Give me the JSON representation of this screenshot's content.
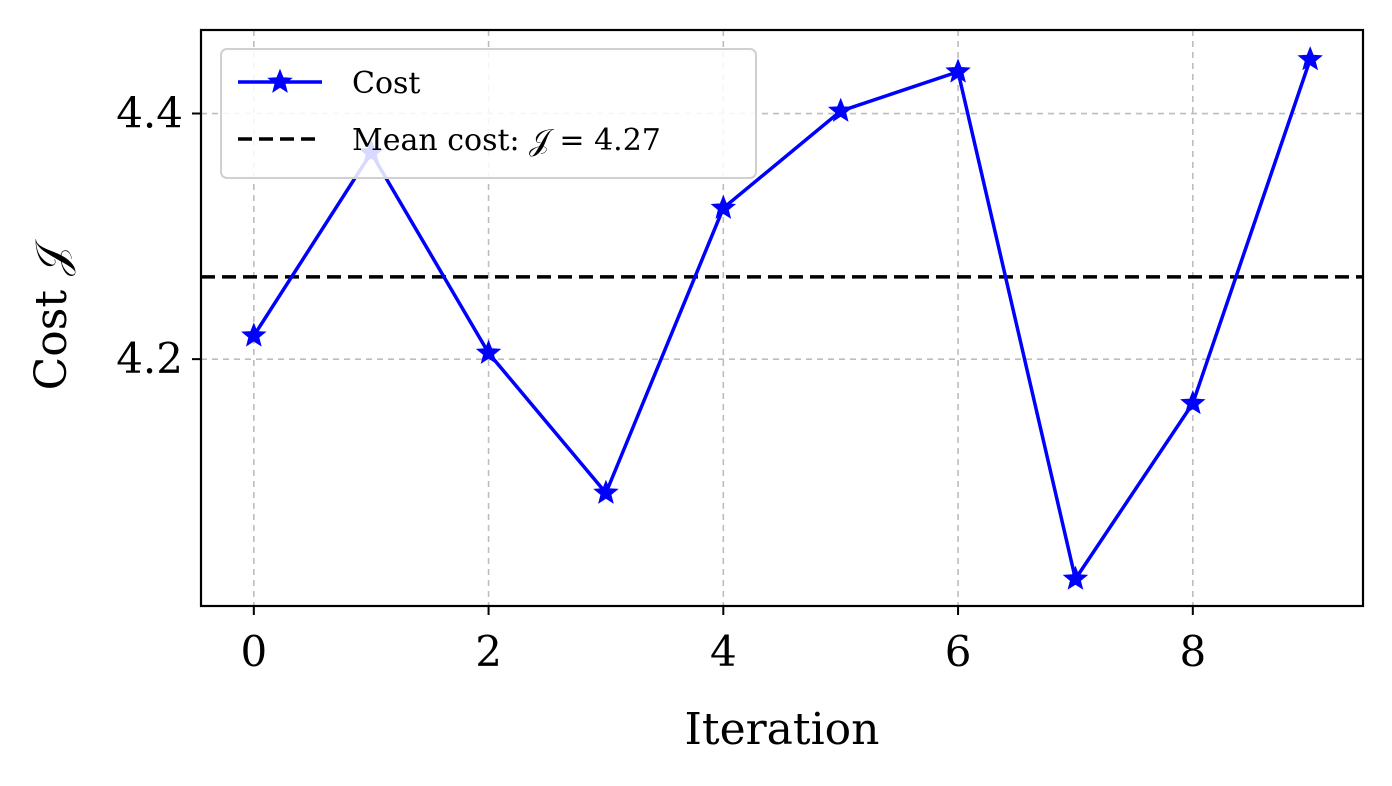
{
  "chart_data": {
    "type": "line",
    "xlabel": "Iteration",
    "ylabel": "Cost 𝒥",
    "xlim": [
      -0.45,
      9.45
    ],
    "ylim": [
      3.999,
      4.468
    ],
    "xticks": [
      0,
      2,
      4,
      6,
      8
    ],
    "xtick_labels": [
      "0",
      "2",
      "4",
      "6",
      "8"
    ],
    "yticks": [
      4.2,
      4.4
    ],
    "ytick_labels": [
      "4.2",
      "4.4"
    ],
    "grid": true,
    "legend_position": "top-left",
    "series": [
      {
        "name": "Cost",
        "color": "#0000ff",
        "marker": "star",
        "x": [
          0,
          1,
          2,
          3,
          4,
          5,
          6,
          7,
          8,
          9
        ],
        "y": [
          4.219,
          4.368,
          4.205,
          4.091,
          4.323,
          4.402,
          4.434,
          4.021,
          4.164,
          4.444
        ]
      }
    ],
    "reference_lines": [
      {
        "name": "Mean cost: 𝒥 = 4.27",
        "y": 4.267,
        "color": "#000000",
        "style": "dashed"
      }
    ]
  }
}
